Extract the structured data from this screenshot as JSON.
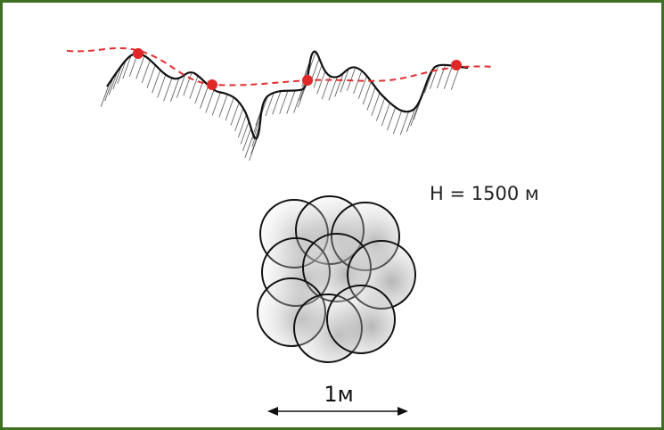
{
  "labels": {
    "altitude": "H = 1500 м",
    "scale": "1м"
  }
}
